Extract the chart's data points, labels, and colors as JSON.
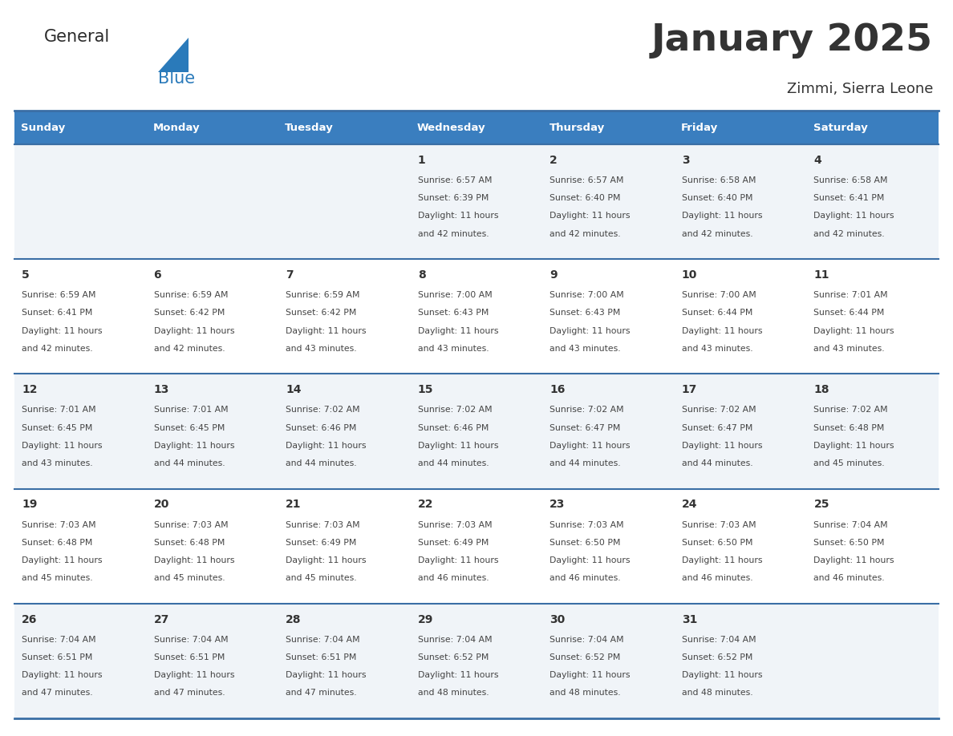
{
  "title": "January 2025",
  "subtitle": "Zimmi, Sierra Leone",
  "header_bg": "#3a7ebf",
  "header_text_color": "#ffffff",
  "cell_bg_light": "#f0f4f8",
  "cell_bg_white": "#ffffff",
  "day_name_color": "#333333",
  "day_number_color": "#333333",
  "info_color": "#444444",
  "border_color": "#3a6ea5",
  "weekdays": [
    "Sunday",
    "Monday",
    "Tuesday",
    "Wednesday",
    "Thursday",
    "Friday",
    "Saturday"
  ],
  "weeks": [
    [
      {
        "day": "",
        "sunrise": "",
        "sunset": "",
        "daylight": ""
      },
      {
        "day": "",
        "sunrise": "",
        "sunset": "",
        "daylight": ""
      },
      {
        "day": "",
        "sunrise": "",
        "sunset": "",
        "daylight": ""
      },
      {
        "day": "1",
        "sunrise": "6:57 AM",
        "sunset": "6:39 PM",
        "daylight": "11 hours and 42 minutes."
      },
      {
        "day": "2",
        "sunrise": "6:57 AM",
        "sunset": "6:40 PM",
        "daylight": "11 hours and 42 minutes."
      },
      {
        "day": "3",
        "sunrise": "6:58 AM",
        "sunset": "6:40 PM",
        "daylight": "11 hours and 42 minutes."
      },
      {
        "day": "4",
        "sunrise": "6:58 AM",
        "sunset": "6:41 PM",
        "daylight": "11 hours and 42 minutes."
      }
    ],
    [
      {
        "day": "5",
        "sunrise": "6:59 AM",
        "sunset": "6:41 PM",
        "daylight": "11 hours and 42 minutes."
      },
      {
        "day": "6",
        "sunrise": "6:59 AM",
        "sunset": "6:42 PM",
        "daylight": "11 hours and 42 minutes."
      },
      {
        "day": "7",
        "sunrise": "6:59 AM",
        "sunset": "6:42 PM",
        "daylight": "11 hours and 43 minutes."
      },
      {
        "day": "8",
        "sunrise": "7:00 AM",
        "sunset": "6:43 PM",
        "daylight": "11 hours and 43 minutes."
      },
      {
        "day": "9",
        "sunrise": "7:00 AM",
        "sunset": "6:43 PM",
        "daylight": "11 hours and 43 minutes."
      },
      {
        "day": "10",
        "sunrise": "7:00 AM",
        "sunset": "6:44 PM",
        "daylight": "11 hours and 43 minutes."
      },
      {
        "day": "11",
        "sunrise": "7:01 AM",
        "sunset": "6:44 PM",
        "daylight": "11 hours and 43 minutes."
      }
    ],
    [
      {
        "day": "12",
        "sunrise": "7:01 AM",
        "sunset": "6:45 PM",
        "daylight": "11 hours and 43 minutes."
      },
      {
        "day": "13",
        "sunrise": "7:01 AM",
        "sunset": "6:45 PM",
        "daylight": "11 hours and 44 minutes."
      },
      {
        "day": "14",
        "sunrise": "7:02 AM",
        "sunset": "6:46 PM",
        "daylight": "11 hours and 44 minutes."
      },
      {
        "day": "15",
        "sunrise": "7:02 AM",
        "sunset": "6:46 PM",
        "daylight": "11 hours and 44 minutes."
      },
      {
        "day": "16",
        "sunrise": "7:02 AM",
        "sunset": "6:47 PM",
        "daylight": "11 hours and 44 minutes."
      },
      {
        "day": "17",
        "sunrise": "7:02 AM",
        "sunset": "6:47 PM",
        "daylight": "11 hours and 44 minutes."
      },
      {
        "day": "18",
        "sunrise": "7:02 AM",
        "sunset": "6:48 PM",
        "daylight": "11 hours and 45 minutes."
      }
    ],
    [
      {
        "day": "19",
        "sunrise": "7:03 AM",
        "sunset": "6:48 PM",
        "daylight": "11 hours and 45 minutes."
      },
      {
        "day": "20",
        "sunrise": "7:03 AM",
        "sunset": "6:48 PM",
        "daylight": "11 hours and 45 minutes."
      },
      {
        "day": "21",
        "sunrise": "7:03 AM",
        "sunset": "6:49 PM",
        "daylight": "11 hours and 45 minutes."
      },
      {
        "day": "22",
        "sunrise": "7:03 AM",
        "sunset": "6:49 PM",
        "daylight": "11 hours and 46 minutes."
      },
      {
        "day": "23",
        "sunrise": "7:03 AM",
        "sunset": "6:50 PM",
        "daylight": "11 hours and 46 minutes."
      },
      {
        "day": "24",
        "sunrise": "7:03 AM",
        "sunset": "6:50 PM",
        "daylight": "11 hours and 46 minutes."
      },
      {
        "day": "25",
        "sunrise": "7:04 AM",
        "sunset": "6:50 PM",
        "daylight": "11 hours and 46 minutes."
      }
    ],
    [
      {
        "day": "26",
        "sunrise": "7:04 AM",
        "sunset": "6:51 PM",
        "daylight": "11 hours and 47 minutes."
      },
      {
        "day": "27",
        "sunrise": "7:04 AM",
        "sunset": "6:51 PM",
        "daylight": "11 hours and 47 minutes."
      },
      {
        "day": "28",
        "sunrise": "7:04 AM",
        "sunset": "6:51 PM",
        "daylight": "11 hours and 47 minutes."
      },
      {
        "day": "29",
        "sunrise": "7:04 AM",
        "sunset": "6:52 PM",
        "daylight": "11 hours and 48 minutes."
      },
      {
        "day": "30",
        "sunrise": "7:04 AM",
        "sunset": "6:52 PM",
        "daylight": "11 hours and 48 minutes."
      },
      {
        "day": "31",
        "sunrise": "7:04 AM",
        "sunset": "6:52 PM",
        "daylight": "11 hours and 48 minutes."
      },
      {
        "day": "",
        "sunrise": "",
        "sunset": "",
        "daylight": ""
      }
    ]
  ],
  "logo_general_color": "#2b2b2b",
  "logo_blue_color": "#2a7aba",
  "logo_triangle_color": "#2a7aba"
}
